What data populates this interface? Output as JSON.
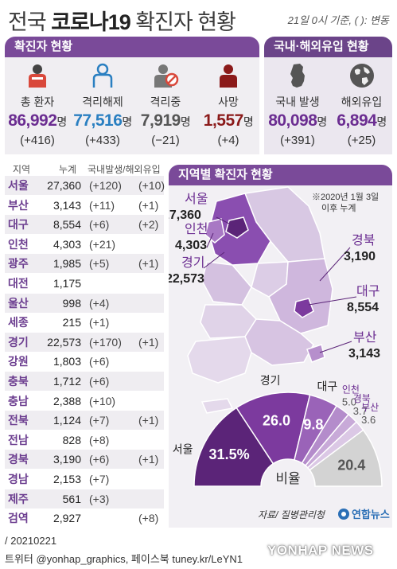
{
  "title": {
    "plain_prefix": "전국 ",
    "bold": "코로나19",
    "plain_suffix": " 확진자 현황"
  },
  "date_note": "21일 0시 기준, ( ): 변동",
  "sections": {
    "status": "확진자 현황",
    "origin": "국내·해외유입 현황",
    "map": "지역별 확진자 현황"
  },
  "stats": [
    {
      "label": "총 환자",
      "value": "86,992",
      "unit": "명",
      "change": "(+416)",
      "color": "#6b2d91",
      "icon": "patient-icon"
    },
    {
      "label": "격리해제",
      "value": "77,516",
      "unit": "명",
      "change": "(+433)",
      "color": "#2a7fc1",
      "icon": "released-person-icon"
    },
    {
      "label": "격리중",
      "value": "7,919",
      "unit": "명",
      "change": "(−21)",
      "color": "#666666",
      "icon": "isolated-person-icon"
    },
    {
      "label": "사망",
      "value": "1,557",
      "unit": "명",
      "change": "(+4)",
      "color": "#8b1a1a",
      "icon": "death-person-icon"
    }
  ],
  "origin_stats": [
    {
      "label": "국내 발생",
      "value": "80,098",
      "unit": "명",
      "change": "(+391)",
      "color": "#6b2d91",
      "icon": "korea-map-icon"
    },
    {
      "label": "해외유입",
      "value": "6,894",
      "unit": "명",
      "change": "(+25)",
      "color": "#6b2d91",
      "icon": "globe-icon"
    }
  ],
  "table": {
    "headers": {
      "region": "지역",
      "total": "누계",
      "breakdown": "국내발생/해외유입"
    },
    "rows": [
      {
        "region": "서울",
        "total": "27,360",
        "domestic": "(+120)",
        "overseas": "(+10)"
      },
      {
        "region": "부산",
        "total": "3,143",
        "domestic": "(+11)",
        "overseas": "(+1)"
      },
      {
        "region": "대구",
        "total": "8,554",
        "domestic": "(+6)",
        "overseas": "(+2)"
      },
      {
        "region": "인천",
        "total": "4,303",
        "domestic": "(+21)",
        "overseas": ""
      },
      {
        "region": "광주",
        "total": "1,985",
        "domestic": "(+5)",
        "overseas": "(+1)"
      },
      {
        "region": "대전",
        "total": "1,175",
        "domestic": "",
        "overseas": ""
      },
      {
        "region": "울산",
        "total": "998",
        "domestic": "(+4)",
        "overseas": ""
      },
      {
        "region": "세종",
        "total": "215",
        "domestic": "(+1)",
        "overseas": ""
      },
      {
        "region": "경기",
        "total": "22,573",
        "domestic": "(+170)",
        "overseas": "(+1)"
      },
      {
        "region": "강원",
        "total": "1,803",
        "domestic": "(+6)",
        "overseas": ""
      },
      {
        "region": "충북",
        "total": "1,712",
        "domestic": "(+6)",
        "overseas": ""
      },
      {
        "region": "충남",
        "total": "2,388",
        "domestic": "(+10)",
        "overseas": ""
      },
      {
        "region": "전북",
        "total": "1,124",
        "domestic": "(+7)",
        "overseas": "(+1)"
      },
      {
        "region": "전남",
        "total": "828",
        "domestic": "(+8)",
        "overseas": ""
      },
      {
        "region": "경북",
        "total": "3,190",
        "domestic": "(+6)",
        "overseas": "(+1)"
      },
      {
        "region": "경남",
        "total": "2,153",
        "domestic": "(+7)",
        "overseas": ""
      },
      {
        "region": "제주",
        "total": "561",
        "domestic": "(+3)",
        "overseas": ""
      },
      {
        "region": "검역",
        "total": "2,927",
        "domestic": "",
        "overseas": "(+8)"
      }
    ]
  },
  "map": {
    "note_line1": "※2020년 1월 3일",
    "note_line2": "이후 누계",
    "callouts": [
      {
        "name": "서울",
        "value": "27,360"
      },
      {
        "name": "인천",
        "value": "4,303"
      },
      {
        "name": "경기",
        "value": "22,573"
      },
      {
        "name": "경북",
        "value": "3,190"
      },
      {
        "name": "대구",
        "value": "8,554"
      },
      {
        "name": "부산",
        "value": "3,143"
      }
    ]
  },
  "chart_data": {
    "type": "pie",
    "title": "비율",
    "unit": "%",
    "slices": [
      {
        "label": "서울",
        "value": 31.5,
        "value_text": "31.5%",
        "color": "#5b2478"
      },
      {
        "label": "경기",
        "value": 26.0,
        "value_text": "26.0",
        "color": "#7c3a9e"
      },
      {
        "label": "대구",
        "value": 9.8,
        "value_text": "9.8",
        "color": "#9a63b8"
      },
      {
        "label": "인천",
        "value": 5.0,
        "value_text": "5.0",
        "color": "#b48ccb"
      },
      {
        "label": "경북",
        "value": 3.7,
        "value_text": "3.7",
        "color": "#c8aad8"
      },
      {
        "label": "부산",
        "value": 3.6,
        "value_text": "3.6",
        "color": "#dbc8e5"
      },
      {
        "label": "",
        "value": 20.4,
        "value_text": "20.4",
        "color": "#d3d3d3"
      }
    ]
  },
  "source": "자료/ 질병관리청",
  "logo_text": "연합뉴스",
  "footer_date": "/ 20210221",
  "footer_social": "트위터 @yonhap_graphics, 페이스북 tuney.kr/LeYN1",
  "watermark": "YONHAP NEWS"
}
